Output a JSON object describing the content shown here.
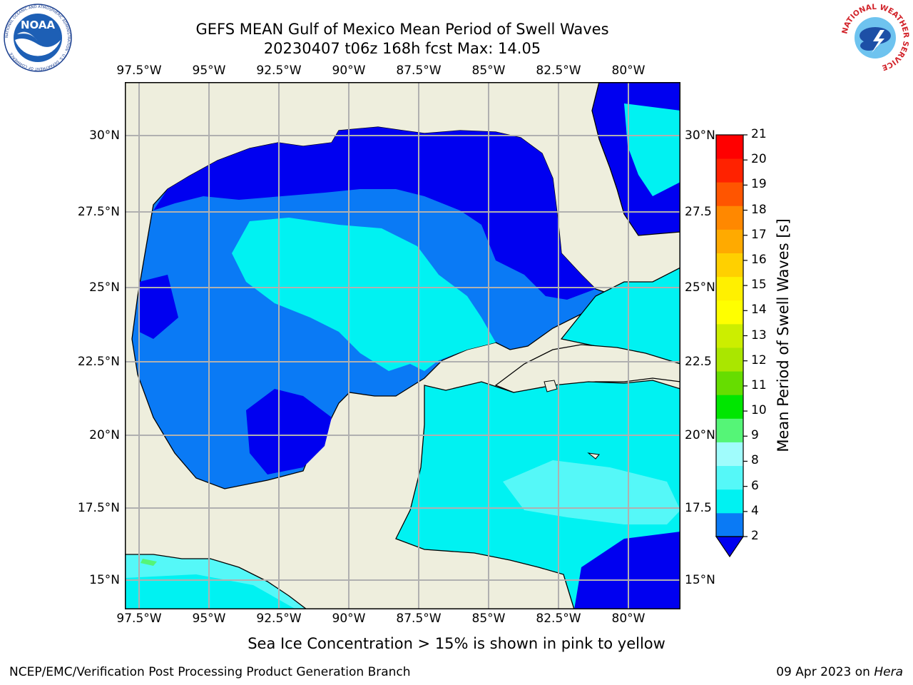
{
  "title": {
    "line1": "GEFS MEAN Gulf of Mexico Mean Period of Swell Waves",
    "line2": "20230407 t06z 168h fcst   Max: 14.05"
  },
  "map": {
    "lon_labels": [
      "97.5°W",
      "95°W",
      "92.5°W",
      "90°W",
      "87.5°W",
      "85°W",
      "82.5°W",
      "80°W"
    ],
    "lat_labels_left": [
      "30°N",
      "27.5°N",
      "25°N",
      "22.5°N",
      "20°N",
      "17.5°N",
      "15°N"
    ],
    "lat_labels_right": [
      "30°N",
      "27.5",
      "25°N",
      "22.5",
      "20°N",
      "17.5",
      "15°N"
    ],
    "colors": {
      "land": "#eeeedd",
      "c2_4": "#0a7af5",
      "lt2": "#0000f0",
      "c4_6": "#00f2f2",
      "c6_8": "#55f8f8",
      "c8_9": "#a0fcfc",
      "c9_10": "#55f577"
    }
  },
  "colorbar": {
    "label": "Mean Period of Swell Waves [s]",
    "ticks": [
      "21",
      "20",
      "19",
      "18",
      "17",
      "16",
      "15",
      "14",
      "13",
      "12",
      "11",
      "10",
      "9",
      "8",
      "6",
      "4",
      "2"
    ],
    "colors": [
      "#0a7af5",
      "#00f2f2",
      "#55f8f8",
      "#a0fcfc",
      "#55f577",
      "#00e600",
      "#66dd00",
      "#aae600",
      "#ccee00",
      "#ffff00",
      "#fff000",
      "#ffd000",
      "#ffaa00",
      "#ff8800",
      "#ff5500",
      "#ff2200",
      "#ff0000"
    ],
    "extend_color": "#0000f0"
  },
  "subtitle": "Sea Ice Concentration > 15% is shown in pink to yellow",
  "footer": {
    "left": "NCEP/EMC/Verification Post Processing Product Generation Branch",
    "right_date": "09 Apr 2023 on ",
    "right_machine": "Hera"
  },
  "logos": {
    "noaa_text": "NOAA",
    "noaa_ring": "NATIONAL OCEANIC AND ATMOSPHERIC ADMINISTRATION · U.S. DEPARTMENT OF COMMERCE",
    "nws_ring": "NATIONAL WEATHER SERVICE"
  }
}
